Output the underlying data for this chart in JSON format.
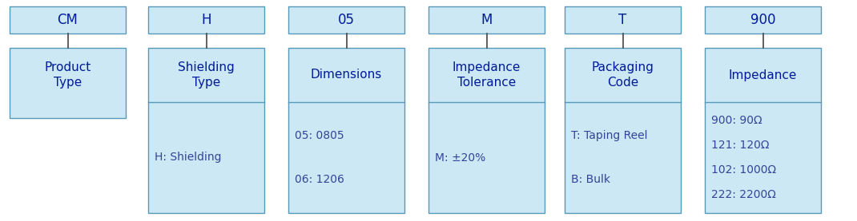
{
  "bg_color": "#ffffff",
  "box_fill_color": "#cce8f4",
  "box_edge_color": "#5599bb",
  "label_color": "#001a99",
  "detail_color": "#334499",
  "fig_w": 10.7,
  "fig_h": 2.77,
  "dpi": 100,
  "columns": [
    {
      "code": "CM",
      "label": "Product\nType",
      "details": [],
      "has_detail_section": false
    },
    {
      "code": "H",
      "label": "Shielding\nType",
      "details": [
        "H: Shielding"
      ],
      "has_detail_section": true
    },
    {
      "code": "05",
      "label": "Dimensions",
      "details": [
        "05: 0805",
        "06: 1206"
      ],
      "has_detail_section": true
    },
    {
      "code": "M",
      "label": "Impedance\nTolerance",
      "details": [
        "M: ±20%"
      ],
      "has_detail_section": true
    },
    {
      "code": "T",
      "label": "Packaging\nCode",
      "details": [
        "T: Taping Reel",
        "B: Bulk"
      ],
      "has_detail_section": true
    },
    {
      "code": "900",
      "label": "Impedance",
      "details": [
        "900: 90Ω",
        "121: 120Ω",
        "102: 1000Ω",
        "222: 2200Ω"
      ],
      "has_detail_section": true
    }
  ]
}
